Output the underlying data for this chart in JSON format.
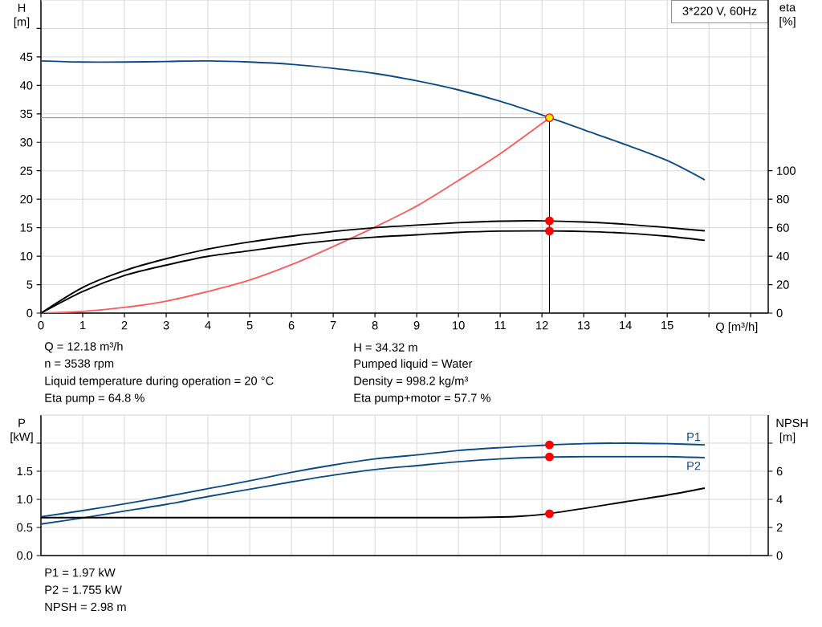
{
  "chart_data": [
    {
      "type": "line",
      "xlabel": "Q [m³/h]",
      "ylabel": "H [m]",
      "y2label": "eta [%]",
      "xlim": [
        0,
        17.42
      ],
      "xticks": [
        0,
        1,
        2,
        3,
        4,
        5,
        6,
        7,
        8,
        9,
        10,
        11,
        12,
        13,
        14,
        15,
        {
          "value": 16,
          "label": null
        },
        {
          "value": 17,
          "label": null
        }
      ],
      "ylim": [
        0,
        55
      ],
      "yticks": [
        0,
        5,
        10,
        15,
        20,
        25,
        30,
        35,
        40,
        45,
        {
          "value": 50,
          "label": null
        }
      ],
      "y2lim": [
        0,
        220
      ],
      "y2ticks": [
        0,
        20,
        40,
        60,
        80,
        100
      ],
      "grid": true,
      "line_style": "solid",
      "series": [
        {
          "color": "#0b4a84",
          "x": [
            0,
            1,
            2,
            3,
            4,
            5,
            6,
            7,
            8,
            9,
            10,
            11,
            12,
            13,
            14,
            15,
            15.9
          ],
          "values": [
            44.3,
            44.1,
            44.1,
            44.2,
            44.3,
            44.1,
            43.7,
            43.0,
            42.1,
            40.8,
            39.2,
            37.2,
            34.8,
            32.2,
            29.6,
            26.8,
            23.4
          ]
        },
        {
          "color": "#ff5a5a",
          "x": [
            0,
            1,
            2,
            3,
            4,
            5,
            6,
            7,
            8,
            9,
            10,
            11,
            12,
            12.18
          ],
          "values": [
            0,
            0.3,
            1.0,
            2.1,
            3.8,
            5.8,
            8.5,
            11.7,
            15.1,
            18.8,
            23.3,
            28,
            33.3,
            34.32
          ]
        },
        {
          "color": "#000000",
          "axis": "y2",
          "x": [
            0,
            1,
            2,
            3,
            4,
            5,
            6,
            7,
            8,
            9,
            10,
            11,
            12,
            13,
            14,
            15,
            15.9
          ],
          "values": [
            0,
            18,
            29.8,
            38.2,
            45,
            50,
            54,
            57.3,
            60,
            61.8,
            63.5,
            64.6,
            64.8,
            64,
            62.4,
            60.1,
            57.8
          ]
        },
        {
          "color": "#000000",
          "axis": "y2",
          "x": [
            0,
            1,
            2,
            3,
            4,
            5,
            6,
            7,
            8,
            9,
            10,
            11,
            12,
            13,
            14,
            15,
            15.9
          ],
          "values": [
            0,
            15.2,
            26.4,
            33.7,
            39.9,
            43.8,
            47.8,
            51.1,
            53.4,
            55,
            56.7,
            57.6,
            57.8,
            57.3,
            56.2,
            54,
            51.1
          ]
        },
        {
          "type": "scatter",
          "color": "#ffee00",
          "x": [
            12.18
          ],
          "values": [
            34.32
          ]
        },
        {
          "type": "scatter",
          "color": "#ff0000",
          "axis": "y2",
          "x": [
            12.18,
            12.18
          ],
          "values": [
            64.8,
            57.7
          ]
        }
      ],
      "ref_lines": [
        {
          "axis": "y",
          "value": 34.32,
          "color": "#a0a0a0"
        },
        {
          "axis": "x",
          "value": 12.18,
          "color": "#000000"
        }
      ],
      "annotations": [
        "3*220 V, 60Hz",
        "Q = 12.18 m³/h",
        "n = 3538 rpm",
        "Liquid temperature during operation = 20 °C",
        "Eta pump = 64.8 %",
        "H = 34.32 m",
        "Pumped liquid = Water",
        "Density = 998.2 kg/m³",
        "Eta pump+motor = 57.7 %"
      ]
    },
    {
      "type": "line",
      "ylabel": "P [kW]",
      "y2label": "NPSH [m]",
      "tick_labels": "y",
      "xlim": [
        0,
        17.42
      ],
      "xticks": [
        {
          "value": 0,
          "label": null
        },
        {
          "value": 1,
          "label": null
        },
        {
          "value": 2,
          "label": null
        },
        {
          "value": 3,
          "label": null
        },
        {
          "value": 4,
          "label": null
        },
        {
          "value": 5,
          "label": null
        },
        {
          "value": 6,
          "label": null
        },
        {
          "value": 7,
          "label": null
        },
        {
          "value": 8,
          "label": null
        },
        {
          "value": 9,
          "label": null
        },
        {
          "value": 10,
          "label": null
        },
        {
          "value": 11,
          "label": null
        },
        {
          "value": 12,
          "label": null
        },
        {
          "value": 13,
          "label": null
        },
        {
          "value": 14,
          "label": null
        },
        {
          "value": 15,
          "label": null
        },
        {
          "value": 16,
          "label": null
        },
        {
          "value": 17,
          "label": null
        }
      ],
      "ylim": [
        0,
        2.5
      ],
      "yticks": [
        {
          "value": 0,
          "label": "0.0"
        },
        {
          "value": 0.5,
          "label": "0.5"
        },
        {
          "value": 1,
          "label": "1.0"
        },
        1.5,
        {
          "value": 2,
          "label": null
        }
      ],
      "y2lim": [
        0,
        10
      ],
      "y2ticks": [
        0,
        2,
        4,
        6,
        {
          "value": 8,
          "label": null
        }
      ],
      "grid": true,
      "line_style": "solid",
      "series": [
        {
          "name": "P1",
          "color": "#0b4a84",
          "x": [
            0,
            1,
            2,
            3,
            4,
            5,
            6,
            7,
            8,
            9,
            10,
            11,
            12,
            13,
            14,
            15,
            15.9
          ],
          "values": [
            0.69,
            0.8,
            0.92,
            1.05,
            1.19,
            1.33,
            1.48,
            1.61,
            1.72,
            1.79,
            1.87,
            1.92,
            1.96,
            1.99,
            2.0,
            1.99,
            1.97
          ]
        },
        {
          "name": "P2",
          "color": "#0b4a84",
          "x": [
            0,
            1,
            2,
            3,
            4,
            5,
            6,
            7,
            8,
            9,
            10,
            11,
            12,
            13,
            14,
            15,
            15.9
          ],
          "values": [
            0.56,
            0.67,
            0.79,
            0.91,
            1.05,
            1.18,
            1.31,
            1.43,
            1.53,
            1.6,
            1.67,
            1.72,
            1.75,
            1.76,
            1.76,
            1.76,
            1.74
          ]
        },
        {
          "color": "#000000",
          "axis": "y2",
          "x": [
            0,
            2,
            4,
            6,
            8,
            10,
            11,
            11.5,
            12,
            13,
            14,
            15,
            15.9
          ],
          "values": [
            2.7,
            2.7,
            2.7,
            2.7,
            2.7,
            2.7,
            2.74,
            2.8,
            2.92,
            3.35,
            3.83,
            4.3,
            4.8
          ]
        },
        {
          "type": "scatter",
          "color": "#ff0000",
          "x": [
            12.18,
            12.18
          ],
          "values": [
            1.97,
            1.755
          ]
        },
        {
          "type": "scatter",
          "color": "#ff0000",
          "axis": "y2",
          "x": [
            12.18
          ],
          "values": [
            2.98
          ]
        }
      ],
      "annotations": [
        "P1 = 1.97 kW",
        "P2 = 1.755 kW",
        "NPSH = 2.98 m"
      ]
    }
  ]
}
